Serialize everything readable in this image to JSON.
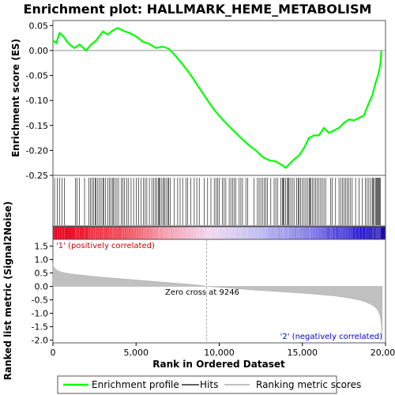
{
  "chart_data": {
    "type": "line",
    "title": "Enrichment plot: HALLMARK_HEME_METABOLISM",
    "xlabel": "Rank in Ordered Dataset",
    "xlim": [
      0,
      20000
    ],
    "x_ticks": [
      0,
      5000,
      10000,
      15000,
      20000
    ],
    "x_tick_labels": [
      "0",
      "5,000",
      "10,000",
      "15,000",
      "20,000"
    ],
    "n_genes": 19800,
    "es_panel": {
      "ylabel": "Enrichment score (ES)",
      "ylim": [
        -0.25,
        0.06
      ],
      "y_ticks": [
        0.05,
        0.0,
        -0.05,
        -0.1,
        -0.15,
        -0.2,
        -0.25
      ],
      "y_tick_labels": [
        "0.05",
        "0.00",
        "-0.05",
        "-0.10",
        "-0.15",
        "-0.20",
        "-0.25"
      ],
      "series": [
        {
          "name": "Enrichment profile",
          "color": "#00ff00",
          "x": [
            0,
            200,
            400,
            600,
            800,
            1000,
            1300,
            1600,
            2000,
            2300,
            2600,
            3000,
            3300,
            3600,
            3900,
            4200,
            4600,
            5000,
            5400,
            5800,
            6200,
            6600,
            7000,
            7400,
            7800,
            8200,
            8600,
            9000,
            9400,
            9800,
            10200,
            10600,
            11000,
            11400,
            11800,
            12200,
            12600,
            13000,
            13400,
            13800,
            14000,
            14200,
            14500,
            14800,
            15100,
            15400,
            15700,
            16000,
            16300,
            16600,
            16900,
            17200,
            17500,
            17800,
            18100,
            18400,
            18700,
            19000,
            19200,
            19400,
            19550,
            19650,
            19700,
            19750
          ],
          "y": [
            0.02,
            0.015,
            0.035,
            0.03,
            0.02,
            0.012,
            0.005,
            0.012,
            0.0,
            0.012,
            0.02,
            0.038,
            0.032,
            0.04,
            0.045,
            0.04,
            0.035,
            0.028,
            0.018,
            0.013,
            0.005,
            0.008,
            0.003,
            -0.012,
            -0.028,
            -0.045,
            -0.065,
            -0.085,
            -0.105,
            -0.123,
            -0.138,
            -0.152,
            -0.165,
            -0.178,
            -0.19,
            -0.2,
            -0.213,
            -0.22,
            -0.222,
            -0.23,
            -0.235,
            -0.228,
            -0.218,
            -0.21,
            -0.195,
            -0.175,
            -0.17,
            -0.17,
            -0.155,
            -0.165,
            -0.16,
            -0.155,
            -0.145,
            -0.138,
            -0.14,
            -0.135,
            -0.13,
            -0.105,
            -0.09,
            -0.065,
            -0.05,
            -0.035,
            -0.025,
            0.0
          ]
        }
      ]
    },
    "hits_panel": {
      "hit_positions": [
        100,
        250,
        400,
        550,
        700,
        1350,
        1450,
        1600,
        1900,
        2150,
        2250,
        2350,
        2450,
        2550,
        2600,
        2700,
        2800,
        2900,
        3000,
        3050,
        3150,
        3300,
        3400,
        3500,
        3600,
        3650,
        3750,
        3850,
        3950,
        4100,
        4200,
        4300,
        4450,
        4550,
        4700,
        4850,
        5000,
        5150,
        5300,
        5450,
        5550,
        5650,
        5800,
        5950,
        6050,
        6150,
        6250,
        6350,
        6400,
        6450,
        6550,
        6650,
        6700,
        6800,
        6900,
        6950,
        7050,
        7300,
        7500,
        7650,
        7800,
        8000,
        8100,
        8300,
        8500,
        8650,
        8800,
        9100,
        9300,
        9500,
        9700,
        9800,
        9900,
        10000,
        10200,
        10300,
        10400,
        10600,
        10700,
        10800,
        10900,
        11000,
        11200,
        11300,
        11400,
        11600,
        11700,
        12100,
        12300,
        12400,
        12500,
        12600,
        12700,
        12800,
        12900,
        13100,
        13300,
        13400,
        13500,
        13700,
        13800,
        13850,
        13900,
        14000,
        14100,
        14150,
        14200,
        14300,
        14400,
        14500,
        14650,
        14750,
        14800,
        14900,
        15000,
        15100,
        15200,
        15300,
        15400,
        15450,
        15500,
        15600,
        15700,
        15800,
        15900,
        16000,
        16100,
        16200,
        16300,
        16400,
        16700,
        16800,
        17000,
        17200,
        17300,
        17400,
        17500,
        17600,
        17700,
        17800,
        17900,
        18000,
        18200,
        18400,
        18600,
        18800,
        18900,
        19000,
        19100,
        19200,
        19250,
        19300,
        19400,
        19450,
        19500,
        19550,
        19600,
        19650,
        19700
      ]
    },
    "metric_panel": {
      "ylabel": "Ranked list metric (Signal2Noise)",
      "ylim": [
        -2.1,
        1.75
      ],
      "y_ticks": [
        1.5,
        1.0,
        0.5,
        0.0,
        -0.5,
        -1.0,
        -1.5,
        -2.0
      ],
      "y_tick_labels": [
        "1.5",
        "1.0",
        "0.5",
        "0.0",
        "-0.5",
        "-1.0",
        "-1.5",
        "-2.0"
      ],
      "series": [
        {
          "name": "Ranking metric scores",
          "color": "#c0c0c0",
          "x": [
            0,
            20,
            100,
            300,
            600,
            1000,
            2000,
            3000,
            4000,
            5000,
            6000,
            7000,
            8000,
            9000,
            9246,
            10000,
            11000,
            12000,
            13000,
            14000,
            15000,
            16000,
            17000,
            17500,
            18000,
            18500,
            18800,
            19100,
            19300,
            19450,
            19550,
            19620,
            19680,
            19720,
            19760,
            19790,
            19800
          ],
          "y": [
            0.85,
            0.78,
            0.68,
            0.58,
            0.52,
            0.47,
            0.4,
            0.34,
            0.29,
            0.24,
            0.19,
            0.14,
            0.09,
            0.03,
            0.0,
            -0.03,
            -0.08,
            -0.13,
            -0.17,
            -0.21,
            -0.25,
            -0.3,
            -0.36,
            -0.4,
            -0.45,
            -0.52,
            -0.58,
            -0.66,
            -0.74,
            -0.82,
            -0.9,
            -1.0,
            -1.1,
            -1.25,
            -1.45,
            -1.75,
            -2.0
          ]
        }
      ],
      "zero_cross": 9246,
      "zero_cross_label": "Zero cross at 9246",
      "pos_label": "'1' (positively correlated)",
      "neg_label": "'2' (negatively correlated)"
    },
    "legend": {
      "placement": "bottom",
      "items": [
        {
          "label": "Enrichment profile",
          "color": "#00ff00",
          "kind": "line"
        },
        {
          "label": "Hits",
          "color": "#000000",
          "kind": "line"
        },
        {
          "label": "Ranking metric scores",
          "color": "#c0c0c0",
          "kind": "line"
        }
      ]
    }
  }
}
